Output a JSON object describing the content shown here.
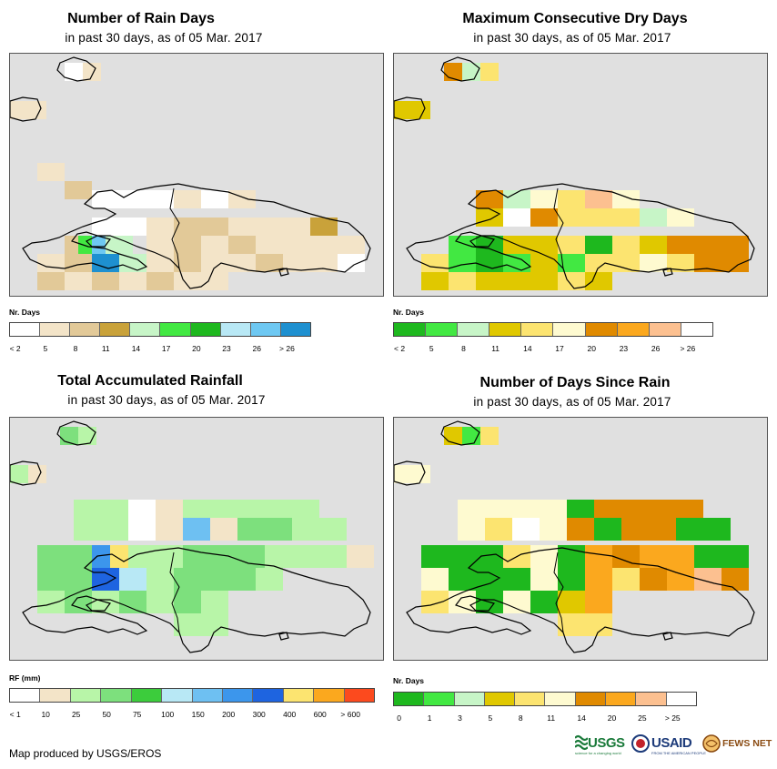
{
  "panels": [
    {
      "id": "rain-days",
      "title": "Number of Rain Days",
      "subtitle": "in past 30 days, as of 05 Mar. 2017",
      "legend_title": "Nr. Days",
      "legend_colors": [
        "#ffffff",
        "#f3e4c8",
        "#e2c998",
        "#c9a23a",
        "#c7f5c7",
        "#42e842",
        "#1eb81e",
        "#b8e8f5",
        "#6ec8f2",
        "#1e90d0"
      ],
      "legend_labels": [
        "< 2",
        "5",
        "8",
        "11",
        "14",
        "17",
        "20",
        "23",
        "26",
        "> 26"
      ]
    },
    {
      "id": "max-dry-days",
      "title": "Maximum Consecutive Dry Days",
      "subtitle": "in past 30 days, as of 05 Mar. 2017",
      "legend_title": "Nr. Days",
      "legend_colors": [
        "#1eb81e",
        "#42e842",
        "#c7f5c7",
        "#e0c800",
        "#fce470",
        "#fefad0",
        "#e08a00",
        "#fba81e",
        "#fcc090",
        "#ffffff"
      ],
      "legend_labels": [
        "< 2",
        "5",
        "8",
        "11",
        "14",
        "17",
        "20",
        "23",
        "26",
        "> 26"
      ]
    },
    {
      "id": "total-rainfall",
      "title": "Total Accumulated Rainfall",
      "subtitle": "in past 30 days, as of 05 Mar. 2017",
      "legend_title": "RF (mm)",
      "legend_colors": [
        "#ffffff",
        "#f3e4c8",
        "#b8f5a8",
        "#7de07d",
        "#3ccc3c",
        "#b8e8f5",
        "#6ec0f2",
        "#3c96ec",
        "#1e64e0",
        "#fce470",
        "#fba81e",
        "#fc4a1e"
      ],
      "legend_labels": [
        "< 1",
        "10",
        "25",
        "50",
        "75",
        "100",
        "150",
        "200",
        "300",
        "400",
        "600",
        "> 600"
      ]
    },
    {
      "id": "days-since-rain",
      "title": "Number of Days Since Rain",
      "subtitle": "in past 30 days, as of 05 Mar. 2017",
      "legend_title": "Nr. Days",
      "legend_colors": [
        "#1eb81e",
        "#42e842",
        "#c7f5c7",
        "#e0c800",
        "#fce470",
        "#fefad0",
        "#e08a00",
        "#fba81e",
        "#fcc090",
        "#ffffff"
      ],
      "legend_labels": [
        "0",
        "1",
        "3",
        "5",
        "8",
        "11",
        "14",
        "20",
        "25",
        "> 25"
      ]
    }
  ],
  "credit": "Map produced by USGS/EROS",
  "logos": {
    "usgs": "USGS",
    "usgs_tagline": "science for a changing world",
    "usaid": "USAID",
    "usaid_tagline": "FROM THE AMERICAN PEOPLE",
    "fews": "FEWS NET"
  },
  "colors": {
    "map_background": "#e0e0e0",
    "border": "#000000"
  }
}
